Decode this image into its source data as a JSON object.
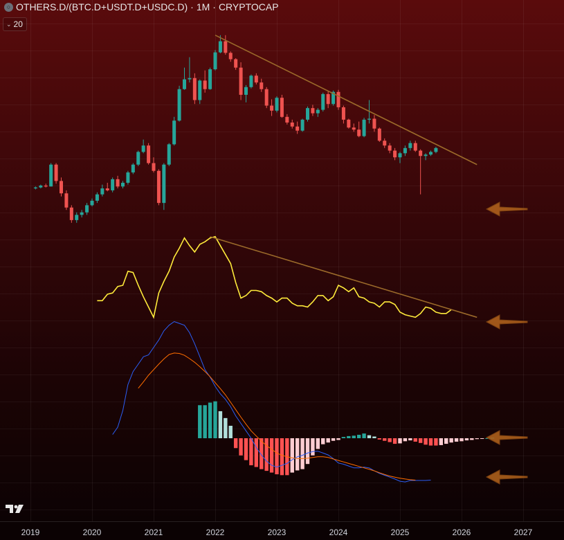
{
  "header": {
    "symbol": "OTHERS.D/(BTC.D+USDT.D+USDC.D)",
    "separator1": "·",
    "interval": "1M",
    "separator2": "·",
    "exchange": "CRYPTOCAP",
    "icon": "symbol-circle-icon"
  },
  "indicator_badge": {
    "value": "20",
    "icon": "chevron-down-icon"
  },
  "logo": {
    "icon": "tradingview-logo-icon"
  },
  "colors": {
    "up": "#26a69a",
    "down": "#ef5350",
    "trendline": "#9b6a2a",
    "rsi": "#ffeb3b",
    "macd": "#2b5ef5",
    "signal": "#ff6d00",
    "hist_up_strong": "#26a69a",
    "hist_up_weak": "#b2dfdb",
    "hist_down_strong": "#ff5252",
    "hist_down_weak": "#ffcdd2",
    "arrow": "#b5651d"
  },
  "chart_data": [
    {
      "type": "candlestick",
      "x_start": "2019-02",
      "interval": "1M",
      "candles": [
        [
          1.0,
          1.02,
          0.99,
          1.01
        ],
        [
          1.01,
          1.04,
          1.0,
          1.03
        ],
        [
          1.03,
          1.05,
          1.01,
          1.02
        ],
        [
          1.02,
          1.3,
          1.02,
          1.28
        ],
        [
          1.28,
          1.3,
          1.05,
          1.08
        ],
        [
          1.08,
          1.12,
          0.92,
          0.95
        ],
        [
          0.95,
          0.98,
          0.8,
          0.82
        ],
        [
          0.82,
          0.84,
          0.7,
          0.72
        ],
        [
          0.72,
          0.78,
          0.7,
          0.76
        ],
        [
          0.76,
          0.8,
          0.74,
          0.78
        ],
        [
          0.78,
          0.86,
          0.76,
          0.84
        ],
        [
          0.84,
          0.9,
          0.83,
          0.88
        ],
        [
          0.88,
          0.96,
          0.86,
          0.94
        ],
        [
          0.94,
          1.04,
          0.92,
          1.0
        ],
        [
          1.0,
          1.06,
          0.97,
          0.98
        ],
        [
          0.98,
          1.12,
          0.96,
          1.1
        ],
        [
          1.1,
          1.14,
          1.0,
          1.02
        ],
        [
          1.02,
          1.08,
          1.0,
          1.06
        ],
        [
          1.06,
          1.2,
          1.04,
          1.18
        ],
        [
          1.18,
          1.3,
          1.16,
          1.28
        ],
        [
          1.28,
          1.48,
          1.26,
          1.46
        ],
        [
          1.46,
          1.66,
          1.44,
          1.56
        ],
        [
          1.56,
          1.6,
          1.28,
          1.3
        ],
        [
          1.3,
          1.38,
          1.18,
          1.2
        ],
        [
          1.2,
          1.22,
          0.84,
          0.86
        ],
        [
          0.86,
          1.3,
          0.8,
          1.28
        ],
        [
          1.28,
          1.6,
          1.26,
          1.58
        ],
        [
          1.58,
          2.1,
          1.56,
          2.02
        ],
        [
          2.02,
          2.9,
          2.0,
          2.8
        ],
        [
          2.8,
          3.5,
          2.78,
          3.1
        ],
        [
          3.1,
          3.9,
          3.0,
          3.14
        ],
        [
          3.14,
          3.3,
          2.4,
          2.5
        ],
        [
          2.5,
          3.1,
          2.4,
          3.06
        ],
        [
          3.06,
          3.4,
          2.7,
          2.8
        ],
        [
          2.8,
          3.5,
          2.78,
          3.44
        ],
        [
          3.44,
          4.2,
          3.4,
          4.1
        ],
        [
          4.1,
          4.9,
          4.06,
          4.6
        ],
        [
          4.6,
          4.9,
          4.0,
          4.08
        ],
        [
          4.08,
          4.14,
          3.72,
          3.82
        ],
        [
          3.82,
          3.86,
          3.42,
          3.5
        ],
        [
          3.5,
          3.7,
          2.5,
          2.64
        ],
        [
          2.64,
          2.92,
          2.44,
          2.86
        ],
        [
          2.86,
          3.26,
          2.82,
          3.22
        ],
        [
          3.22,
          3.3,
          2.94,
          3.0
        ],
        [
          3.0,
          3.12,
          2.72,
          2.8
        ],
        [
          2.8,
          2.86,
          2.3,
          2.36
        ],
        [
          2.36,
          2.52,
          2.12,
          2.24
        ],
        [
          2.24,
          2.6,
          2.2,
          2.56
        ],
        [
          2.56,
          2.64,
          2.08,
          2.1
        ],
        [
          2.1,
          2.16,
          1.94,
          1.98
        ],
        [
          1.98,
          2.04,
          1.86,
          1.9
        ],
        [
          1.9,
          2.0,
          1.76,
          1.82
        ],
        [
          1.82,
          2.06,
          1.8,
          2.04
        ],
        [
          2.04,
          2.34,
          2.0,
          2.3
        ],
        [
          2.3,
          2.38,
          2.12,
          2.18
        ],
        [
          2.18,
          2.3,
          2.1,
          2.26
        ],
        [
          2.26,
          2.7,
          2.22,
          2.66
        ],
        [
          2.66,
          2.74,
          2.3,
          2.4
        ],
        [
          2.4,
          2.76,
          2.36,
          2.72
        ],
        [
          2.72,
          2.78,
          2.26,
          2.32
        ],
        [
          2.32,
          2.36,
          1.96,
          2.04
        ],
        [
          2.04,
          2.06,
          1.86,
          1.88
        ],
        [
          1.88,
          1.96,
          1.8,
          1.84
        ],
        [
          1.84,
          2.0,
          1.7,
          1.72
        ],
        [
          1.72,
          2.08,
          1.7,
          2.04
        ],
        [
          2.04,
          2.5,
          1.96,
          2.06
        ],
        [
          2.06,
          2.14,
          1.8,
          1.86
        ],
        [
          1.86,
          1.88,
          1.62,
          1.64
        ],
        [
          1.64,
          1.68,
          1.52,
          1.56
        ],
        [
          1.56,
          1.6,
          1.44,
          1.48
        ],
        [
          1.48,
          1.52,
          1.34,
          1.38
        ],
        [
          1.38,
          1.46,
          1.3,
          1.44
        ],
        [
          1.44,
          1.56,
          1.4,
          1.52
        ],
        [
          1.52,
          1.64,
          1.48,
          1.6
        ],
        [
          1.6,
          1.64,
          1.46,
          1.48
        ],
        [
          1.48,
          1.5,
          0.94,
          1.4
        ],
        [
          1.4,
          1.44,
          1.34,
          1.42
        ],
        [
          1.42,
          1.48,
          1.4,
          1.46
        ],
        [
          1.46,
          1.54,
          1.44,
          1.52
        ]
      ],
      "y_range": [
        0.5,
        5.0
      ]
    },
    {
      "type": "line",
      "name": "",
      "x_start": "2020-02",
      "values": [
        41,
        41,
        46,
        47,
        52,
        53,
        64,
        63,
        53,
        44,
        36,
        28,
        47,
        56,
        64,
        75,
        82,
        90,
        84,
        79,
        85,
        87,
        90,
        91,
        84,
        77,
        70,
        55,
        43,
        45,
        49,
        49,
        48,
        45,
        43,
        40,
        43,
        43,
        39,
        37,
        37,
        36,
        40,
        45,
        45,
        41,
        44,
        53,
        51,
        48,
        51,
        44,
        43,
        40,
        39,
        36,
        40,
        40,
        38,
        32,
        30,
        29,
        28,
        31,
        36,
        35,
        32,
        31,
        31,
        34
      ]
    },
    {
      "type": "line",
      "name": "",
      "x_start": "2020-02",
      "series": [
        {
          "key": "macd",
          "values": [
            0.1,
            0.3,
            0.75,
            1.45,
            1.8,
            2.0,
            2.2,
            2.25,
            2.45,
            2.65,
            2.9,
            3.05,
            3.15,
            3.1,
            3.05,
            2.85,
            2.55,
            2.2,
            1.85,
            1.65,
            1.4,
            1.2,
            1.05,
            0.85,
            0.6,
            0.4,
            0.2,
            0.0,
            -0.25,
            -0.45,
            -0.62,
            -0.73,
            -0.78,
            -0.73,
            -0.68,
            -0.58,
            -0.5,
            -0.46,
            -0.4,
            -0.36,
            -0.35,
            -0.4,
            -0.45,
            -0.55,
            -0.67,
            -0.7,
            -0.75,
            -0.8,
            -0.8,
            -0.78,
            -0.8,
            -0.88,
            -0.95,
            -1.0,
            -1.05,
            -1.1,
            -1.16,
            -1.18,
            -1.14,
            -1.14,
            -1.14,
            -1.14,
            -1.13
          ]
        },
        {
          "key": "signal",
          "values": [
            1.35,
            1.52,
            1.7,
            1.85,
            2.0,
            2.14,
            2.26,
            2.3,
            2.29,
            2.24,
            2.15,
            2.05,
            1.93,
            1.8,
            1.66,
            1.5,
            1.34,
            1.17,
            0.97,
            0.77,
            0.57,
            0.38,
            0.2,
            0.06,
            -0.08,
            -0.2,
            -0.3,
            -0.4,
            -0.46,
            -0.5,
            -0.53,
            -0.55,
            -0.55,
            -0.54,
            -0.52,
            -0.5,
            -0.5,
            -0.52,
            -0.56,
            -0.6,
            -0.64,
            -0.68,
            -0.72,
            -0.76,
            -0.8,
            -0.84,
            -0.88,
            -0.93,
            -0.98,
            -1.02,
            -1.05,
            -1.08,
            -1.1,
            -1.12,
            -1.13
          ]
        }
      ],
      "histogram": {
        "x_start": "2021-10",
        "values": [
          0.77,
          0.77,
          0.83,
          0.86,
          0.63,
          0.47,
          0.29,
          -0.23,
          -0.4,
          -0.51,
          -0.63,
          -0.67,
          -0.72,
          -0.76,
          -0.8,
          -0.84,
          -0.86,
          -0.86,
          -0.8,
          -0.75,
          -0.72,
          -0.6,
          -0.4,
          -0.25,
          -0.14,
          -0.1,
          -0.06,
          -0.04,
          0.03,
          0.05,
          0.06,
          0.08,
          0.11,
          0.07,
          0.04,
          -0.03,
          -0.06,
          -0.09,
          -0.13,
          -0.12,
          -0.07,
          -0.05,
          -0.08,
          -0.11,
          -0.15,
          -0.17,
          -0.17,
          -0.16,
          -0.13,
          -0.1,
          -0.08,
          -0.07,
          -0.05,
          -0.04,
          -0.02,
          -0.01,
          0.0,
          0.01
        ]
      }
    }
  ],
  "x_axis": {
    "ticks": [
      "2019",
      "2020",
      "2021",
      "2022",
      "2023",
      "2024",
      "2025",
      "2026",
      "2027"
    ]
  },
  "annotations": [
    {
      "type": "trendline",
      "from": [
        "2022-01",
        4.9
      ],
      "to": [
        "2026-04",
        1.28
      ],
      "pane": "price"
    },
    {
      "type": "trendline",
      "from": [
        "2021-12",
        91
      ],
      "to": [
        "2026-04",
        28
      ],
      "pane": "rsi"
    },
    {
      "type": "arrow",
      "pointing": "left",
      "pane": "price"
    },
    {
      "type": "arrow",
      "pointing": "left",
      "pane": "rsi"
    },
    {
      "type": "arrow",
      "pointing": "left",
      "pane": "macd-histogram"
    },
    {
      "type": "arrow",
      "pointing": "left",
      "pane": "macd-lines"
    }
  ]
}
